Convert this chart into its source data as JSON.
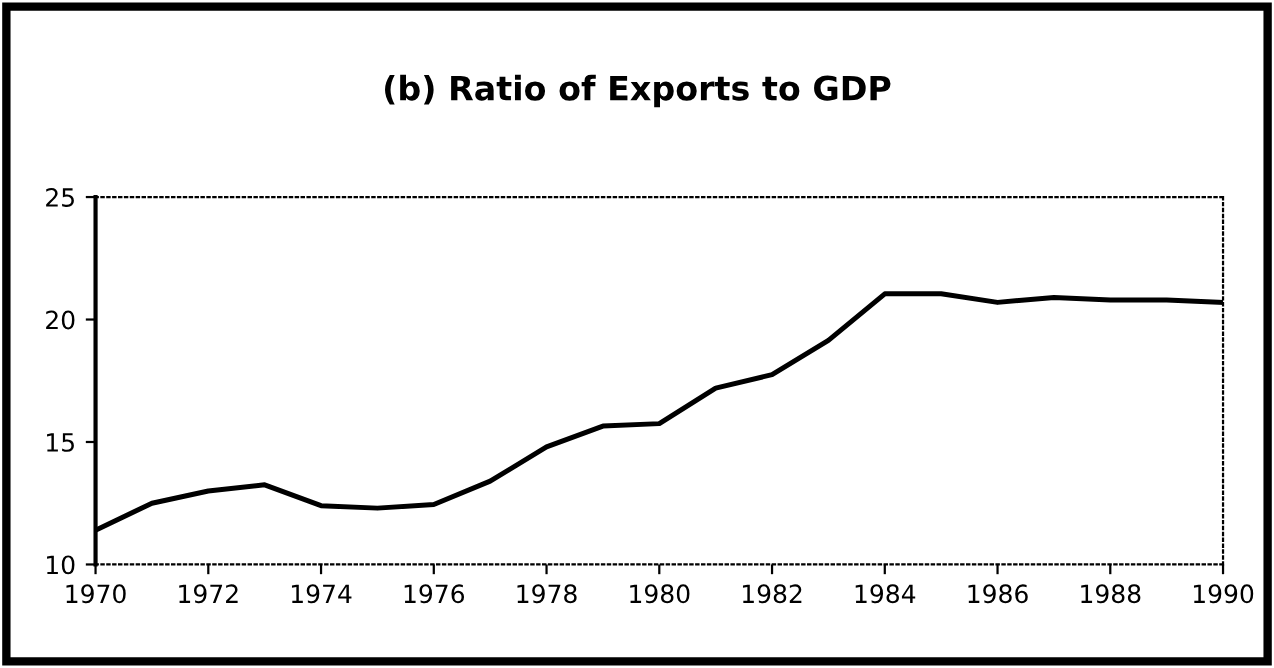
{
  "chart_data": {
    "type": "line",
    "title": "(b) Ratio of Exports to GDP",
    "x": [
      1970,
      1971,
      1972,
      1973,
      1974,
      1975,
      1976,
      1977,
      1978,
      1979,
      1980,
      1981,
      1982,
      1983,
      1984,
      1985,
      1986,
      1987,
      1988,
      1989,
      1990
    ],
    "series": [
      {
        "color": "#000000",
        "values": [
          11.4,
          12.5,
          13.0,
          13.25,
          12.4,
          12.3,
          12.45,
          13.4,
          14.8,
          15.65,
          15.75,
          17.2,
          17.75,
          19.15,
          21.05,
          21.05,
          20.7,
          20.9,
          20.8,
          20.8,
          20.7
        ]
      }
    ],
    "xlim": [
      1970,
      1990
    ],
    "xticks": [
      1970,
      1972,
      1974,
      1976,
      1978,
      1980,
      1982,
      1984,
      1986,
      1988,
      1990
    ],
    "ylim": [
      10,
      25
    ],
    "yticks": [
      10,
      15,
      20,
      25
    ],
    "grid": false,
    "legend": false,
    "marker": "none",
    "line_style": "solid"
  }
}
